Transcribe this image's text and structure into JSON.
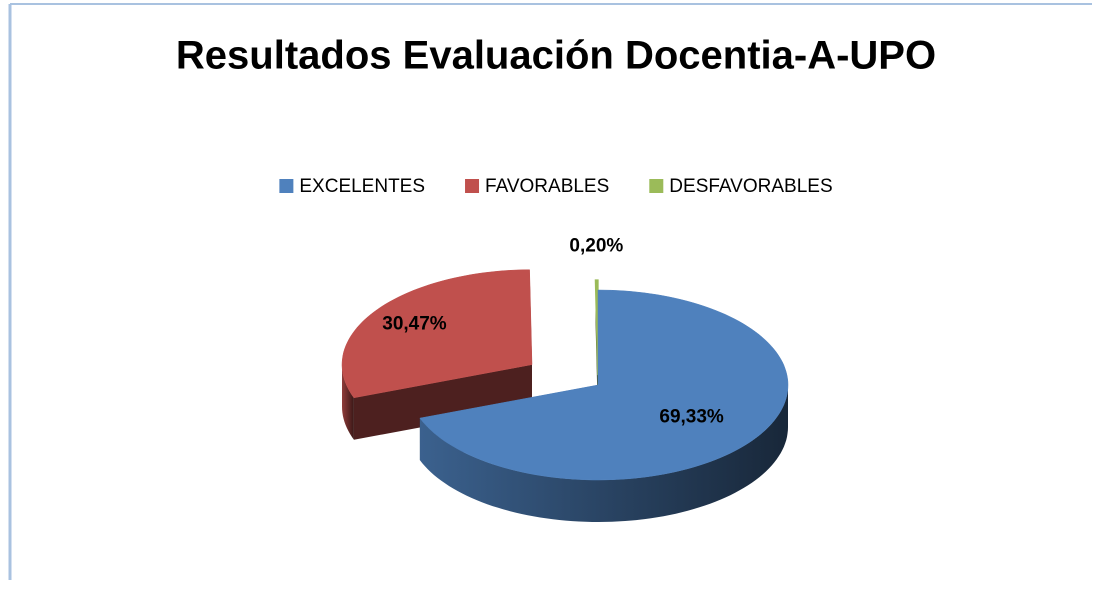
{
  "chart_data": {
    "type": "pie3d",
    "title": "Resultados Evaluación Docentia-A-UPO",
    "categories": [
      "EXCELENTES",
      "FAVORABLES",
      "DESFAVORABLES"
    ],
    "values": [
      69.33,
      30.47,
      0.2
    ],
    "value_labels": [
      "69,33%",
      "30,47%",
      "0,20%"
    ],
    "colors": [
      "#4f81bd",
      "#c0504d",
      "#9bbb59"
    ],
    "legend": "top"
  }
}
